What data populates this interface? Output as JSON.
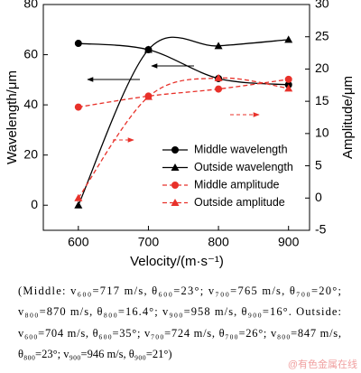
{
  "chart_data": {
    "type": "line",
    "x": [
      600,
      700,
      800,
      900
    ],
    "xlabel": "Velocity/(m·s⁻¹)",
    "ylabel": "Wavelength/μm",
    "y2label": "Amplitude/μm",
    "xlim": [
      550,
      930
    ],
    "xticks": [
      600,
      700,
      800,
      900
    ],
    "ylim": [
      -10,
      80
    ],
    "yticks": [
      0,
      20,
      40,
      60,
      80
    ],
    "y2lim": [
      -5,
      30
    ],
    "y2ticks": [
      -5,
      0,
      5,
      10,
      15,
      20,
      25,
      30
    ],
    "series": [
      {
        "name": "Middle wavelength",
        "color": "#000000",
        "marker": "circle",
        "dashed": false,
        "values": [
          64.5,
          62,
          50.5,
          48
        ]
      },
      {
        "name": "Outside wavelength",
        "color": "#000000",
        "marker": "triangle",
        "dashed": false,
        "values": [
          0,
          62,
          63.5,
          66
        ]
      },
      {
        "name": "Middle amplitude",
        "color": "#e8312a",
        "marker": "circle",
        "dashed": true,
        "axis": "y2",
        "values": [
          14.1,
          15.8,
          16.9,
          18.4
        ]
      },
      {
        "name": "Outside amplitude",
        "color": "#e8312a",
        "marker": "triangle",
        "dashed": true,
        "axis": "y2",
        "values": [
          0,
          15.7,
          18.6,
          17
        ]
      }
    ]
  },
  "caption": [
    "(Middle: v₆₀₀=717 m/s, θ₆₀₀=23°; v₇₀₀=765 m/s, θ₇₀₀=20°;",
    "v₈₀₀=870 m/s, θ₈₀₀=16.4°; v₉₀₀=958 m/s, θ₉₀₀=16°. Outside:",
    "v₆₀₀=704 m/s, θ₆₀₀=35°; v₇₀₀=724 m/s, θ₇₀₀=26°; v₈₀₀=847 m/s,",
    "θ₈₀₀=23°; v₉₀₀=946 m/s, θ₉₀₀=21°)"
  ],
  "watermark": "@有色金属在线"
}
